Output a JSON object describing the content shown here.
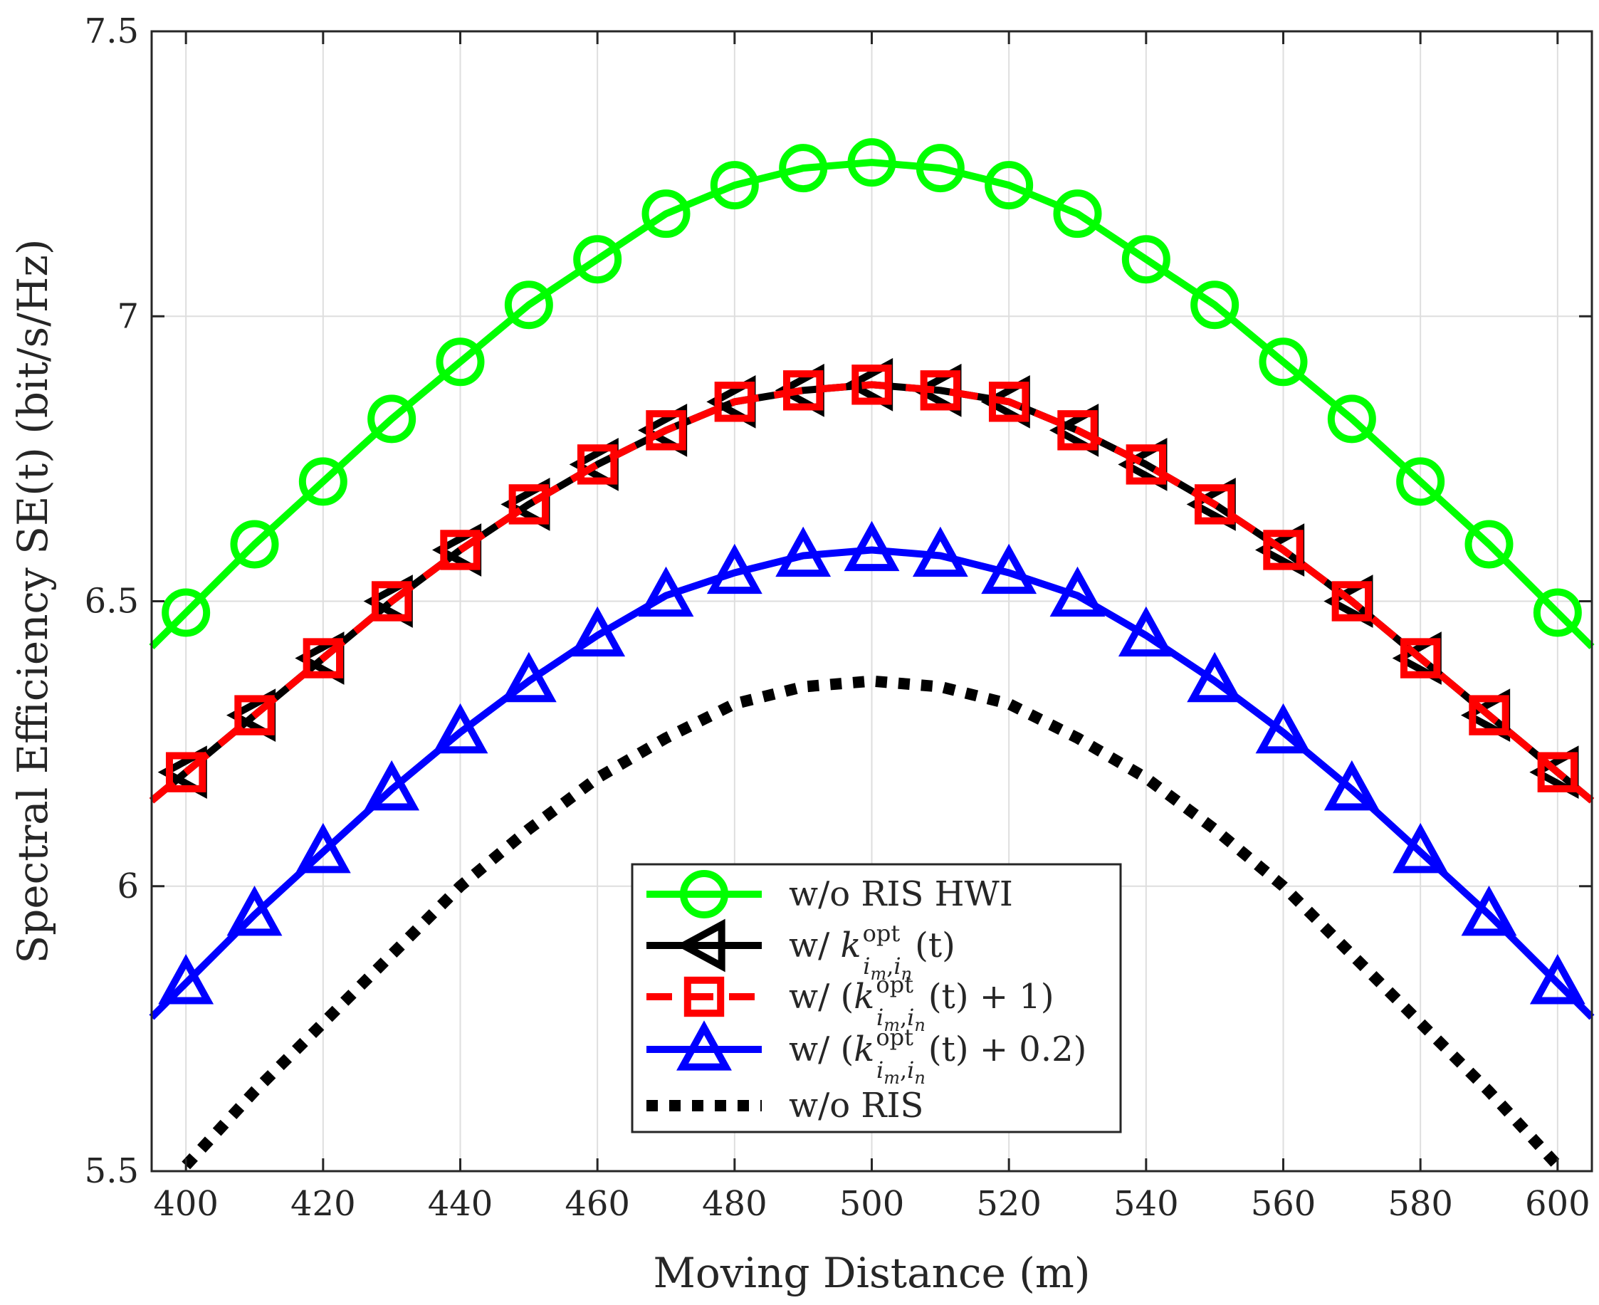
{
  "chart_data": {
    "type": "line",
    "xlabel": "Moving Distance (m)",
    "ylabel": "Spectral Efficiency SE(t) (bit/s/Hz)",
    "xlim": [
      395,
      605
    ],
    "ylim": [
      5.5,
      7.5
    ],
    "xticks": [
      400,
      420,
      440,
      460,
      480,
      500,
      520,
      540,
      560,
      580,
      600
    ],
    "xtick_labels": [
      "400",
      "420",
      "440",
      "460",
      "480",
      "500",
      "520",
      "540",
      "560",
      "580",
      "600"
    ],
    "yticks": [
      5.5,
      6,
      6.5,
      7,
      7.5
    ],
    "ytick_labels": [
      "5.5",
      "6",
      "6.5",
      "7",
      "7.5"
    ],
    "grid": true,
    "legend_position": "bottom-center",
    "x": [
      400,
      410,
      420,
      430,
      440,
      450,
      460,
      470,
      480,
      490,
      500,
      510,
      520,
      530,
      540,
      550,
      560,
      570,
      580,
      590,
      600
    ],
    "series": [
      {
        "name": "w/o RIS HWI",
        "legend_label": "w/o RIS HWI",
        "color": "#00ff00",
        "linestyle": "solid",
        "marker": "circle",
        "values": [
          6.48,
          6.6,
          6.71,
          6.82,
          6.92,
          7.02,
          7.1,
          7.18,
          7.23,
          7.26,
          7.27,
          7.26,
          7.23,
          7.18,
          7.1,
          7.02,
          6.92,
          6.82,
          6.71,
          6.6,
          6.48
        ]
      },
      {
        "name": "w/ k_opt(t)",
        "legend_label": "w/ k^opt_{i_m,i_n}(t)",
        "color": "#000000",
        "linestyle": "solid",
        "marker": "triangle-left",
        "values": [
          6.2,
          6.3,
          6.4,
          6.5,
          6.59,
          6.67,
          6.74,
          6.8,
          6.85,
          6.87,
          6.88,
          6.87,
          6.85,
          6.8,
          6.74,
          6.67,
          6.59,
          6.5,
          6.4,
          6.3,
          6.2
        ]
      },
      {
        "name": "w/ (k_opt(t)+1)",
        "legend_label": "w/ (k^opt_{i_m,i_n}(t) + 1)",
        "color": "#ff0000",
        "linestyle": "dashed",
        "marker": "square",
        "values": [
          6.2,
          6.3,
          6.4,
          6.5,
          6.59,
          6.67,
          6.74,
          6.8,
          6.85,
          6.87,
          6.88,
          6.87,
          6.85,
          6.8,
          6.74,
          6.67,
          6.59,
          6.5,
          6.4,
          6.3,
          6.2
        ]
      },
      {
        "name": "w/ (k_opt(t)+0.2)",
        "legend_label": "w/ (k^opt_{i_m,i_n}(t) + 0.2)",
        "color": "#0000ff",
        "linestyle": "solid",
        "marker": "triangle-up",
        "values": [
          5.83,
          5.95,
          6.06,
          6.17,
          6.27,
          6.36,
          6.44,
          6.51,
          6.55,
          6.58,
          6.59,
          6.58,
          6.55,
          6.51,
          6.44,
          6.36,
          6.27,
          6.17,
          6.06,
          5.95,
          5.83
        ]
      },
      {
        "name": "w/o RIS",
        "legend_label": "w/o RIS",
        "color": "#000000",
        "linestyle": "dotted",
        "marker": "none",
        "values": [
          5.51,
          5.64,
          5.76,
          5.88,
          6.0,
          6.1,
          6.19,
          6.26,
          6.32,
          6.35,
          6.36,
          6.35,
          6.32,
          6.26,
          6.19,
          6.1,
          6.0,
          5.88,
          5.76,
          5.64,
          5.51
        ]
      }
    ],
    "legend_entries": [
      {
        "base": "w/o RIS HWI"
      },
      {
        "pre": "w/ ",
        "k": "k",
        "sup": "opt",
        "sub": "i",
        "subsub1": "m",
        "comma": ",",
        "sub2": "i",
        "subsub2": "n",
        "post": "(t)"
      },
      {
        "pre": "w/ (",
        "k": "k",
        "sup": "opt",
        "sub": "i",
        "subsub1": "m",
        "comma": ",",
        "sub2": "i",
        "subsub2": "n",
        "post": "(t) + 1)"
      },
      {
        "pre": "w/ (",
        "k": "k",
        "sup": "opt",
        "sub": "i",
        "subsub1": "m",
        "comma": ",",
        "sub2": "i",
        "subsub2": "n",
        "post": "(t) + 0.2)"
      },
      {
        "base": "w/o RIS"
      }
    ]
  }
}
